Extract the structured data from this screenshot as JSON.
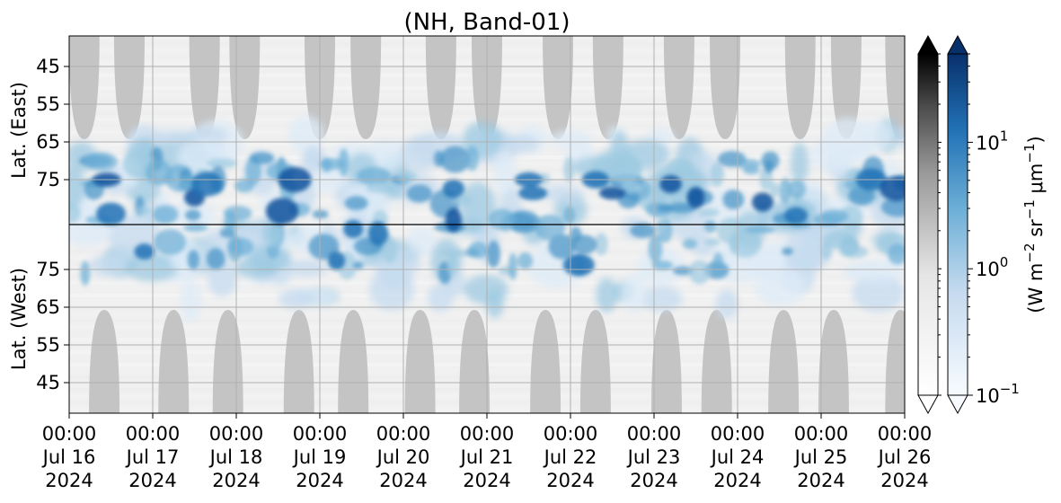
{
  "chart_data": {
    "type": "heatmap",
    "title": "(NH, Band-01)",
    "ylabel_top": "Lat. (East)",
    "ylabel_bottom": "Lat. (West)",
    "colorbar_label": "(W m$^{-2}$ sr$^{-1}$ $\\mu$m$^{-1}$)",
    "colorbar_label_parts": [
      "(W m",
      "−2",
      " sr",
      "−1",
      " μm",
      "−1",
      ")"
    ],
    "color_scale": "log",
    "clim": [
      0.1,
      50
    ],
    "colorbar_ticks": [
      {
        "base": "10",
        "exp": "1",
        "value": 10
      },
      {
        "base": "10",
        "exp": "0",
        "value": 1
      },
      {
        "base": "10",
        "exp": "−1",
        "value": 0.1
      }
    ],
    "colormaps": [
      "Greys",
      "Blues"
    ],
    "colors": {
      "grey_max": "#000000",
      "blue_max": "#08306b",
      "blue_mid": "#4292c6",
      "blue_low": "#c6dbef",
      "night_fill": "#c4c4c4",
      "background": "#f0f0f0"
    },
    "grid": true,
    "y_tick_labels_east": [
      "45",
      "55",
      "65",
      "75"
    ],
    "y_tick_labels_west": [
      "75",
      "65",
      "55",
      "45"
    ],
    "x_ticks": [
      {
        "time": "00:00",
        "date": "Jul 16",
        "year": "2024"
      },
      {
        "time": "00:00",
        "date": "Jul 17",
        "year": "2024"
      },
      {
        "time": "00:00",
        "date": "Jul 18",
        "year": "2024"
      },
      {
        "time": "00:00",
        "date": "Jul 19",
        "year": "2024"
      },
      {
        "time": "00:00",
        "date": "Jul 20",
        "year": "2024"
      },
      {
        "time": "00:00",
        "date": "Jul 21",
        "year": "2024"
      },
      {
        "time": "00:00",
        "date": "Jul 22",
        "year": "2024"
      },
      {
        "time": "00:00",
        "date": "Jul 23",
        "year": "2024"
      },
      {
        "time": "00:00",
        "date": "Jul 24",
        "year": "2024"
      },
      {
        "time": "00:00",
        "date": "Jul 25",
        "year": "2024"
      },
      {
        "time": "00:00",
        "date": "Jul 26",
        "year": "2024"
      }
    ],
    "xlim": [
      "2024-07-16 00:00",
      "2024-07-26 00:00"
    ],
    "activity_band": "auroral emission concentrated between about 60° and the pole on both sides, strongest near 70–80°",
    "night_regions": "grey lobes at low latitudes alternating twice per day between East and West"
  }
}
